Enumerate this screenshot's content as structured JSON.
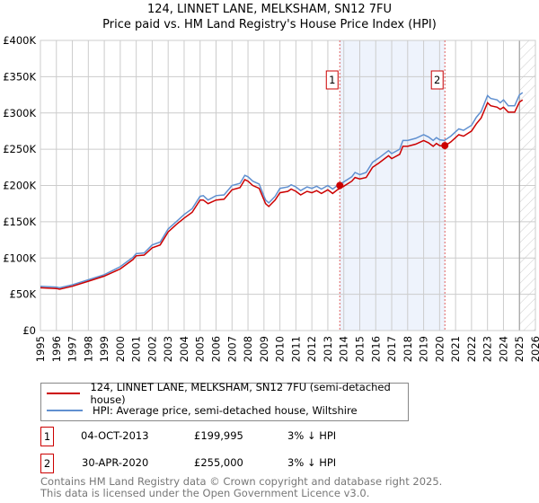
{
  "chart_data": {
    "type": "line",
    "title": "124, LINNET LANE, MELKSHAM, SN12 7FU",
    "subtitle": "Price paid vs. HM Land Registry's House Price Index (HPI)",
    "xlim": [
      1995,
      2026
    ],
    "ylim": [
      0,
      400000
    ],
    "x_ticks": [
      "1995",
      "1996",
      "1997",
      "1998",
      "1999",
      "2000",
      "2001",
      "2002",
      "2003",
      "2004",
      "2005",
      "2006",
      "2007",
      "2008",
      "2009",
      "2010",
      "2011",
      "2012",
      "2013",
      "2014",
      "2015",
      "2016",
      "2017",
      "2018",
      "2019",
      "2020",
      "2021",
      "2022",
      "2023",
      "2024",
      "2025",
      "2026"
    ],
    "y_ticks": [
      {
        "v": 0,
        "label": "£0"
      },
      {
        "v": 50000,
        "label": "£50K"
      },
      {
        "v": 100000,
        "label": "£100K"
      },
      {
        "v": 150000,
        "label": "£150K"
      },
      {
        "v": 200000,
        "label": "£200K"
      },
      {
        "v": 250000,
        "label": "£250K"
      },
      {
        "v": 300000,
        "label": "£300K"
      },
      {
        "v": 350000,
        "label": "£350K"
      },
      {
        "v": 400000,
        "label": "£400K"
      }
    ],
    "grid": true,
    "shaded_range": [
      2013.75,
      2020.33
    ],
    "forecast_hatch_from": 2025.0,
    "x": [
      1995,
      1996,
      1996.2,
      1997,
      1998,
      1999,
      2000,
      2000.8,
      2001,
      2001.5,
      2002,
      2002.5,
      2003,
      2003.5,
      2004,
      2004.5,
      2005,
      2005.2,
      2005.5,
      2006,
      2006.5,
      2007,
      2007.5,
      2007.8,
      2008,
      2008.3,
      2008.7,
      2009.1,
      2009.3,
      2009.7,
      2010,
      2010.5,
      2010.7,
      2011,
      2011.3,
      2011.7,
      2012,
      2012.3,
      2012.6,
      2013,
      2013.3,
      2013.6,
      2014,
      2014.5,
      2014.7,
      2015,
      2015.4,
      2015.8,
      2016.2,
      2016.8,
      2017,
      2017.5,
      2017.7,
      2018,
      2018.5,
      2019,
      2019.3,
      2019.6,
      2019.8,
      2020,
      2020.3,
      2020.7,
      2021.2,
      2021.5,
      2022,
      2022.3,
      2022.6,
      2023,
      2023.2,
      2023.6,
      2023.8,
      2024,
      2024.3,
      2024.7,
      2025,
      2025.2
    ],
    "series": [
      {
        "name": "124, LINNET LANE, MELKSHAM, SN12 7FU (semi-detached house)",
        "color": "#cc0000",
        "values": [
          59,
          58,
          57,
          61,
          68,
          75,
          85,
          98,
          103,
          104,
          114,
          118,
          136,
          146,
          155,
          163,
          180,
          180,
          175,
          180,
          181,
          194,
          197,
          208,
          206,
          200,
          196,
          175,
          171,
          180,
          190,
          192,
          195,
          192,
          187,
          192,
          190,
          193,
          189,
          194,
          189,
          194,
          199,
          206,
          211,
          209,
          211,
          225,
          231,
          241,
          237,
          243,
          254,
          254,
          257,
          262,
          259,
          254,
          258,
          255,
          254,
          260,
          270,
          268,
          275,
          285,
          293,
          314,
          310,
          308,
          305,
          308,
          301,
          301,
          315,
          318
        ]
      },
      {
        "name": "HPI: Average price, semi-detached house, Wiltshire",
        "color": "#6090d0",
        "values": [
          61,
          60,
          59,
          63,
          70,
          77,
          88,
          101,
          106,
          107,
          118,
          122,
          140,
          150,
          160,
          168,
          185,
          186,
          180,
          186,
          187,
          200,
          203,
          214,
          212,
          206,
          202,
          180,
          176,
          185,
          196,
          198,
          201,
          198,
          193,
          198,
          196,
          199,
          195,
          200,
          195,
          200,
          205,
          212,
          218,
          215,
          218,
          232,
          238,
          248,
          244,
          250,
          262,
          262,
          265,
          270,
          267,
          262,
          266,
          263,
          262,
          268,
          278,
          276,
          283,
          294,
          302,
          324,
          320,
          318,
          314,
          318,
          310,
          310,
          325,
          328
        ]
      }
    ],
    "value_unit": "thousands GBP",
    "sales": [
      {
        "id": "1",
        "x": 2013.75,
        "price": 199995,
        "date": "04-OCT-2013",
        "price_label": "£199,995",
        "hpi_label": "3% ↓ HPI"
      },
      {
        "id": "2",
        "x": 2020.33,
        "price": 255000,
        "date": "30-APR-2020",
        "price_label": "£255,000",
        "hpi_label": "3% ↓ HPI"
      }
    ]
  },
  "footer": {
    "line1": "Contains HM Land Registry data © Crown copyright and database right 2025.",
    "line2": "This data is licensed under the Open Government Licence v3.0."
  }
}
